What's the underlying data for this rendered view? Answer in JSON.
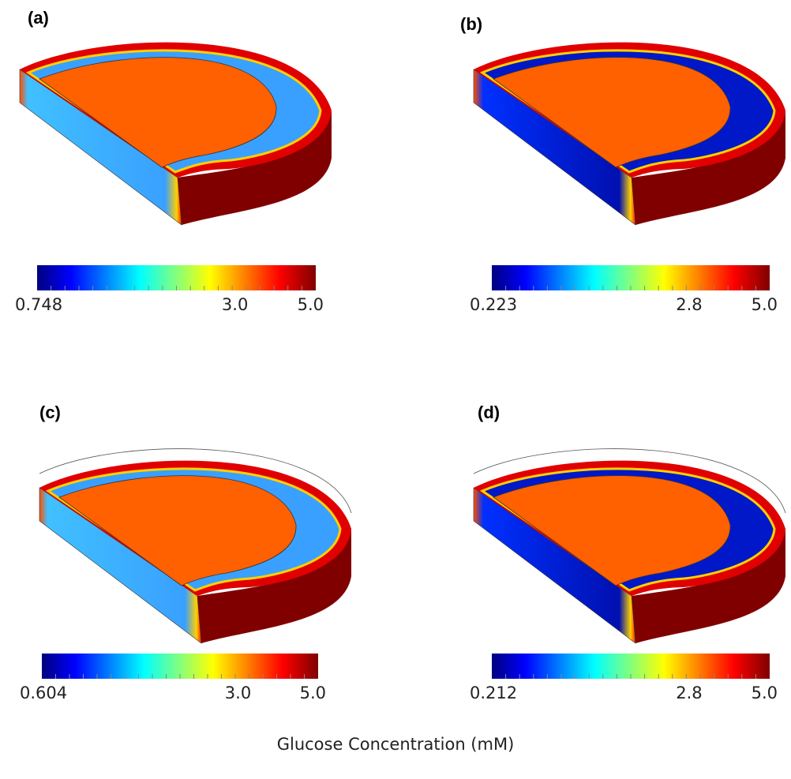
{
  "figure": {
    "panels": [
      {
        "label": "(a)",
        "colorbar": {
          "min": "0.748",
          "mid": "3.0",
          "max": "5.0"
        }
      },
      {
        "label": "(b)",
        "colorbar": {
          "min": "0.223",
          "mid": "2.8",
          "max": "5.0"
        }
      },
      {
        "label": "(c)",
        "colorbar": {
          "min": "0.604",
          "mid": "3.0",
          "max": "5.0"
        }
      },
      {
        "label": "(d)",
        "colorbar": {
          "min": "0.212",
          "mid": "2.8",
          "max": "5.0"
        }
      }
    ],
    "caption": "Glucose Concentration (mM)"
  }
}
